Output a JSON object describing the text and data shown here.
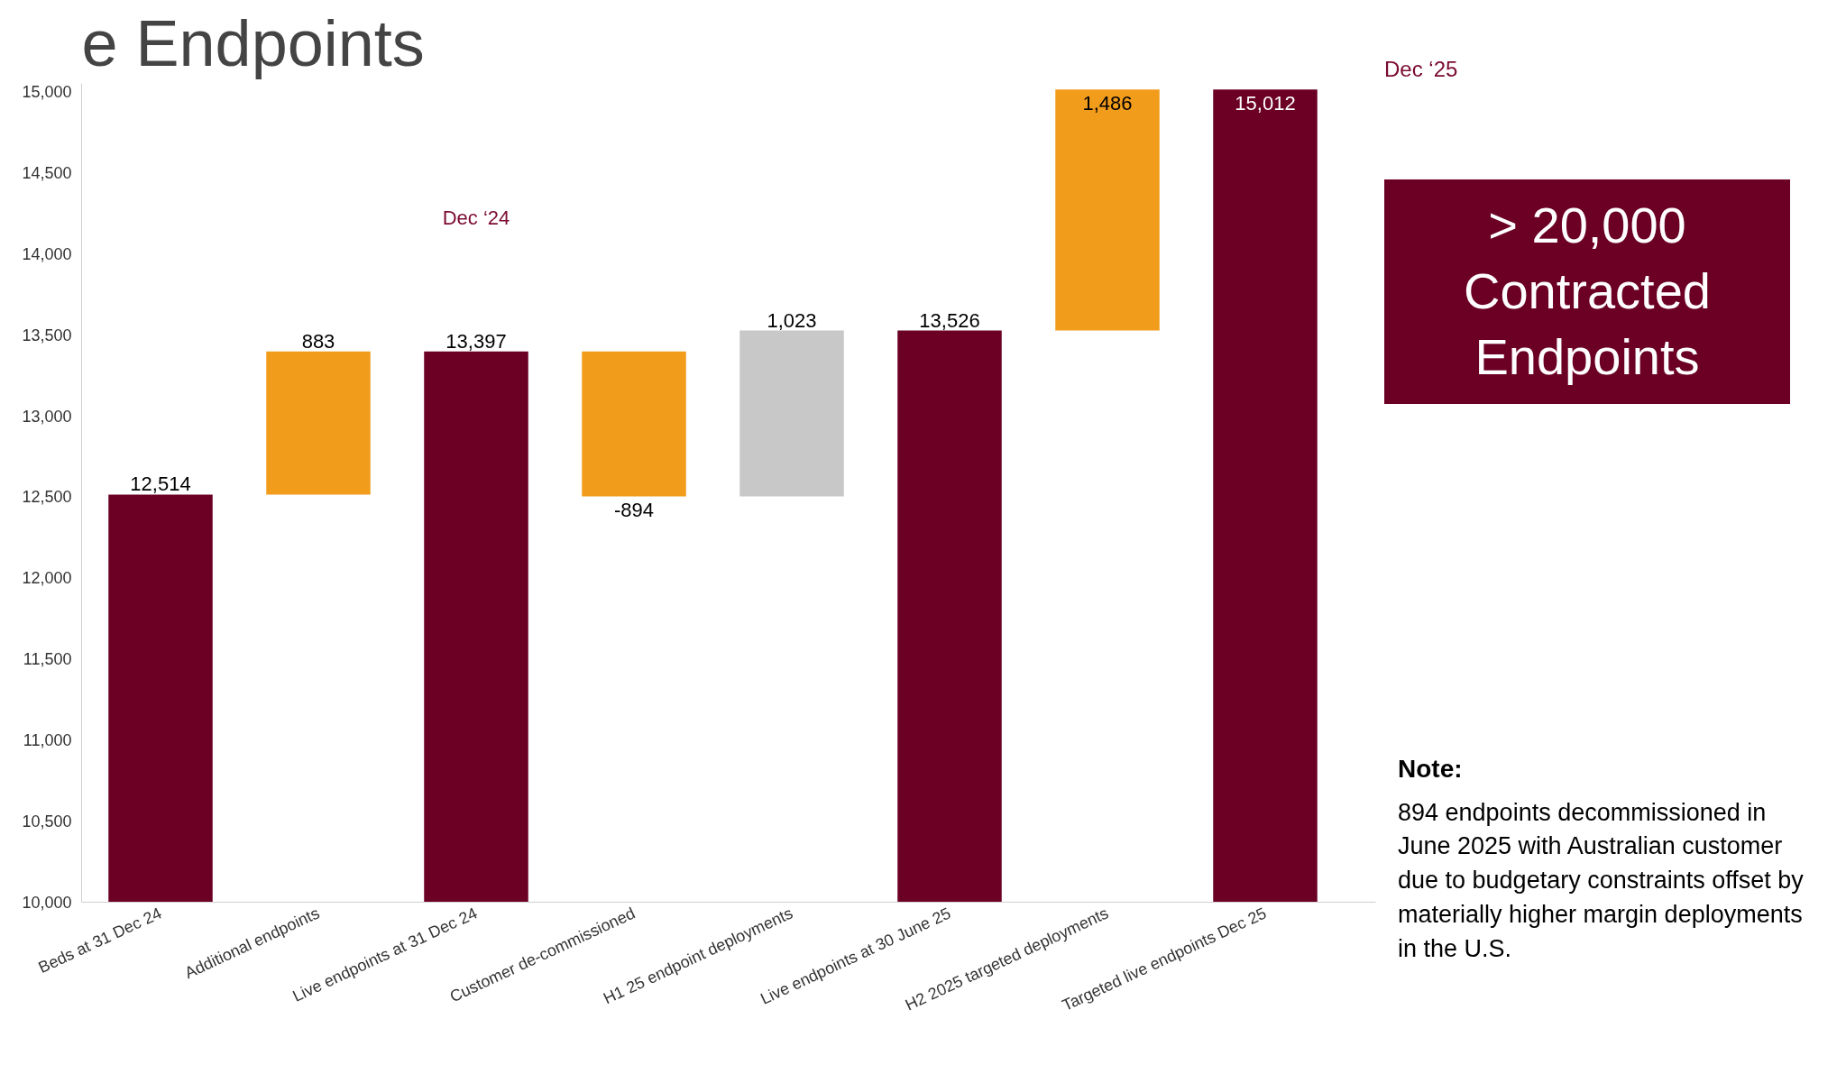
{
  "chart_data": {
    "type": "bar",
    "title": "e Endpoints",
    "categories": [
      "Beds at 31 Dec 24",
      "Additional endpoints",
      "Live endpoints at 31 Dec 24",
      "Customer de-commissioned",
      "H1 25 endpoint deployments",
      "Live endpoints at 30 June 25",
      "H2 2025 targeted deployments",
      "Targeted live endpoints Dec 25"
    ],
    "values": [
      12514,
      883,
      13397,
      -894,
      1023,
      13526,
      1486,
      15012
    ],
    "base": [
      null,
      12514,
      null,
      13397,
      12503,
      null,
      13526,
      null
    ],
    "colors": [
      "#6b0024",
      "#f29c1c",
      "#6b0024",
      "#f29c1c",
      "#c8c8c8",
      "#6b0024",
      "#f29c1c",
      "#6b0024"
    ],
    "value_labels": [
      "12,514",
      "883",
      "13,397",
      "-894",
      "1,023",
      "13,526",
      "1,486",
      "15,012"
    ],
    "ylim": [
      10000,
      15050
    ],
    "yticks": [
      {
        "value": 10000,
        "label": "10,000"
      },
      {
        "value": 10500,
        "label": "10,500"
      },
      {
        "value": 11000,
        "label": "11,000"
      },
      {
        "value": 11500,
        "label": "11,500"
      },
      {
        "value": 12000,
        "label": "12,000"
      },
      {
        "value": 12500,
        "label": "12,500"
      },
      {
        "value": 13000,
        "label": "13,000"
      },
      {
        "value": 13500,
        "label": "13,500"
      },
      {
        "value": 14000,
        "label": "14,000"
      },
      {
        "value": 14500,
        "label": "14,500"
      },
      {
        "value": 15000,
        "label": "15,000"
      }
    ],
    "grid": false,
    "annotations": [
      "Dec ‘24",
      "Dec ‘25",
      "> 20,000 Contracted Endpoints",
      "Note:",
      "894 endpoints decommissioned in June 2025 with Australian customer due to budgetary constraints offset by materially higher margin deployments in the U.S."
    ]
  }
}
